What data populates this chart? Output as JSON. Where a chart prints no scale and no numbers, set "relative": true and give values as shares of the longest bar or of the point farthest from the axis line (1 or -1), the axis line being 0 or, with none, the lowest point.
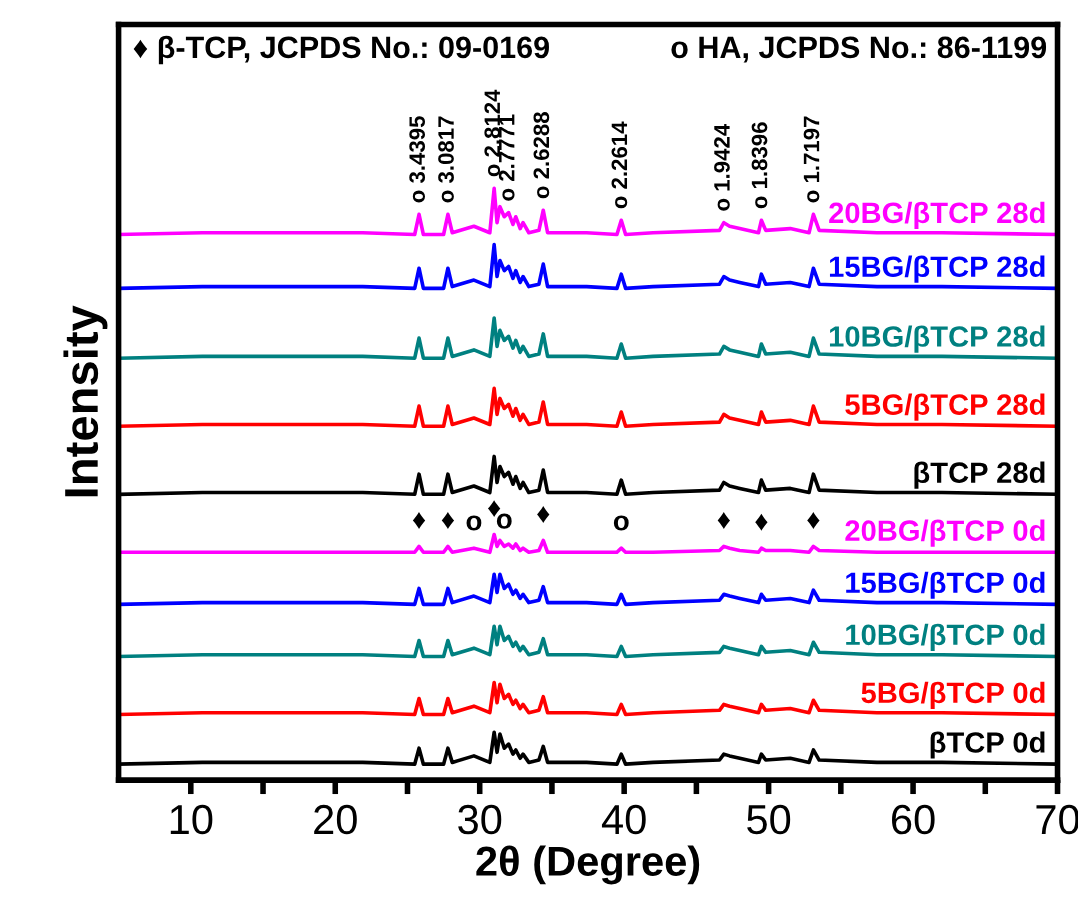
{
  "chart_data": {
    "type": "line",
    "relative": true,
    "xlabel": "2θ (Degree)",
    "ylabel": "Intensity",
    "xlim": [
      5,
      70
    ],
    "xticks": [
      10,
      {
        "value": 15,
        "label": null
      },
      20,
      {
        "value": 25,
        "label": null
      },
      30,
      {
        "value": 35,
        "label": null
      },
      40,
      {
        "value": 45,
        "label": null
      },
      50,
      {
        "value": 55,
        "label": null
      },
      60,
      {
        "value": 65,
        "label": null
      },
      70
    ],
    "x": [
      5,
      10.8,
      13.6,
      17.0,
      21.9,
      25.5,
      25.8,
      26.1,
      27.5,
      27.8,
      28.1,
      29.6,
      30.7,
      31.0,
      31.2,
      31.4,
      31.7,
      32.0,
      32.3,
      32.5,
      32.8,
      33.0,
      33.4,
      34.1,
      34.4,
      34.7,
      37.4,
      39.5,
      39.8,
      40.1,
      42.0,
      46.6,
      46.9,
      47.3,
      48.0,
      49.3,
      49.5,
      49.8,
      51.5,
      52.8,
      53.1,
      53.5,
      57.5,
      62.0,
      70
    ],
    "series": [
      {
        "name": "20BG/βTCP 28d",
        "color": "#ff00ff",
        "values": [
          0.922,
          0.925,
          0.925,
          0.925,
          0.925,
          0.922,
          0.956,
          0.922,
          0.922,
          0.956,
          0.925,
          0.936,
          0.925,
          1.0,
          0.942,
          0.969,
          0.952,
          0.959,
          0.939,
          0.952,
          0.932,
          0.942,
          0.925,
          0.929,
          0.963,
          0.925,
          0.925,
          0.922,
          0.946,
          0.922,
          0.925,
          0.929,
          0.942,
          0.936,
          0.932,
          0.925,
          0.946,
          0.929,
          0.932,
          0.925,
          0.956,
          0.929,
          0.925,
          0.925,
          0.922
        ]
      },
      {
        "name": "15BG/βTCP 28d",
        "color": "#0000ff",
        "values": [
          0.831,
          0.834,
          0.834,
          0.834,
          0.834,
          0.831,
          0.865,
          0.831,
          0.831,
          0.865,
          0.834,
          0.845,
          0.834,
          0.905,
          0.851,
          0.878,
          0.861,
          0.868,
          0.848,
          0.861,
          0.841,
          0.851,
          0.834,
          0.838,
          0.872,
          0.834,
          0.834,
          0.831,
          0.855,
          0.831,
          0.834,
          0.838,
          0.851,
          0.845,
          0.841,
          0.834,
          0.855,
          0.838,
          0.841,
          0.834,
          0.865,
          0.838,
          0.834,
          0.834,
          0.831
        ]
      },
      {
        "name": "10BG/βTCP 28d",
        "color": "#008080",
        "values": [
          0.713,
          0.716,
          0.716,
          0.716,
          0.716,
          0.713,
          0.747,
          0.713,
          0.713,
          0.747,
          0.716,
          0.727,
          0.716,
          0.781,
          0.733,
          0.76,
          0.743,
          0.75,
          0.73,
          0.743,
          0.723,
          0.733,
          0.716,
          0.72,
          0.754,
          0.716,
          0.716,
          0.713,
          0.737,
          0.713,
          0.716,
          0.72,
          0.733,
          0.727,
          0.723,
          0.716,
          0.737,
          0.72,
          0.723,
          0.716,
          0.747,
          0.72,
          0.716,
          0.716,
          0.713
        ]
      },
      {
        "name": "5BG/βTCP 28d",
        "color": "#ff0000",
        "values": [
          0.598,
          0.601,
          0.601,
          0.601,
          0.601,
          0.598,
          0.632,
          0.598,
          0.598,
          0.632,
          0.601,
          0.612,
          0.601,
          0.662,
          0.618,
          0.645,
          0.628,
          0.635,
          0.615,
          0.628,
          0.608,
          0.618,
          0.601,
          0.605,
          0.639,
          0.601,
          0.601,
          0.598,
          0.622,
          0.598,
          0.601,
          0.605,
          0.618,
          0.612,
          0.608,
          0.601,
          0.622,
          0.605,
          0.608,
          0.601,
          0.632,
          0.605,
          0.601,
          0.601,
          0.598
        ]
      },
      {
        "name": "βTCP 28d",
        "color": "#000000",
        "values": [
          0.483,
          0.486,
          0.486,
          0.486,
          0.486,
          0.483,
          0.517,
          0.483,
          0.483,
          0.517,
          0.486,
          0.497,
          0.486,
          0.547,
          0.503,
          0.53,
          0.513,
          0.52,
          0.5,
          0.513,
          0.493,
          0.503,
          0.486,
          0.49,
          0.524,
          0.486,
          0.486,
          0.483,
          0.507,
          0.483,
          0.486,
          0.49,
          0.503,
          0.497,
          0.493,
          0.486,
          0.507,
          0.49,
          0.493,
          0.486,
          0.517,
          0.49,
          0.486,
          0.486,
          0.483
        ]
      },
      {
        "name": "20BG/βTCP 0d",
        "color": "#ff00ff",
        "values": [
          0.385,
          0.385,
          0.385,
          0.385,
          0.385,
          0.385,
          0.395,
          0.385,
          0.385,
          0.395,
          0.385,
          0.392,
          0.385,
          0.415,
          0.395,
          0.405,
          0.395,
          0.399,
          0.392,
          0.399,
          0.388,
          0.392,
          0.385,
          0.388,
          0.405,
          0.385,
          0.385,
          0.385,
          0.392,
          0.385,
          0.385,
          0.388,
          0.395,
          0.392,
          0.388,
          0.385,
          0.392,
          0.388,
          0.388,
          0.385,
          0.395,
          0.388,
          0.385,
          0.385,
          0.385
        ]
      },
      {
        "name": "15BG/βTCP 0d",
        "color": "#0000ff",
        "values": [
          0.297,
          0.3,
          0.3,
          0.3,
          0.3,
          0.297,
          0.324,
          0.297,
          0.297,
          0.324,
          0.3,
          0.311,
          0.3,
          0.348,
          0.317,
          0.348,
          0.324,
          0.331,
          0.314,
          0.321,
          0.307,
          0.314,
          0.3,
          0.304,
          0.327,
          0.3,
          0.3,
          0.297,
          0.314,
          0.297,
          0.3,
          0.304,
          0.314,
          0.311,
          0.307,
          0.3,
          0.314,
          0.304,
          0.307,
          0.3,
          0.321,
          0.304,
          0.3,
          0.3,
          0.297
        ]
      },
      {
        "name": "10BG/βTCP 0d",
        "color": "#008080",
        "values": [
          0.209,
          0.212,
          0.212,
          0.212,
          0.212,
          0.209,
          0.236,
          0.209,
          0.209,
          0.236,
          0.212,
          0.223,
          0.212,
          0.26,
          0.229,
          0.26,
          0.236,
          0.243,
          0.226,
          0.233,
          0.219,
          0.226,
          0.212,
          0.216,
          0.239,
          0.212,
          0.212,
          0.209,
          0.226,
          0.209,
          0.212,
          0.216,
          0.226,
          0.223,
          0.219,
          0.212,
          0.226,
          0.216,
          0.219,
          0.212,
          0.233,
          0.216,
          0.212,
          0.212,
          0.209
        ]
      },
      {
        "name": "5BG/βTCP 0d",
        "color": "#ff0000",
        "values": [
          0.111,
          0.114,
          0.114,
          0.114,
          0.114,
          0.111,
          0.138,
          0.111,
          0.111,
          0.138,
          0.114,
          0.125,
          0.114,
          0.165,
          0.131,
          0.162,
          0.138,
          0.145,
          0.128,
          0.135,
          0.121,
          0.128,
          0.114,
          0.118,
          0.141,
          0.114,
          0.114,
          0.111,
          0.128,
          0.111,
          0.114,
          0.118,
          0.128,
          0.125,
          0.121,
          0.114,
          0.128,
          0.118,
          0.121,
          0.114,
          0.135,
          0.118,
          0.114,
          0.114,
          0.111
        ]
      },
      {
        "name": "βTCP 0d",
        "color": "#000000",
        "values": [
          0.027,
          0.03,
          0.03,
          0.03,
          0.03,
          0.027,
          0.054,
          0.027,
          0.027,
          0.054,
          0.03,
          0.041,
          0.03,
          0.081,
          0.047,
          0.078,
          0.054,
          0.061,
          0.044,
          0.051,
          0.037,
          0.044,
          0.03,
          0.034,
          0.057,
          0.03,
          0.03,
          0.027,
          0.044,
          0.027,
          0.03,
          0.034,
          0.044,
          0.041,
          0.037,
          0.03,
          0.044,
          0.034,
          0.037,
          0.03,
          0.051,
          0.034,
          0.03,
          0.03,
          0.027
        ]
      }
    ],
    "annotations": [
      "♦ β-TCP, JCPDS No.: 09-0169",
      "o HA, JCPDS No.: 86-1199",
      {
        "text": "o 3.4395",
        "x": 25.8,
        "y": 0.956
      },
      {
        "text": "o 3.0817",
        "x": 27.8,
        "y": 0.956
      },
      {
        "text": "o 2.8124",
        "x": 31.0,
        "y": 1.0
      },
      {
        "text": "o 2.7771",
        "x": 32.0,
        "y": 0.959
      },
      {
        "text": "o 2.6288",
        "x": 34.4,
        "y": 0.963
      },
      {
        "text": "o 2.2614",
        "x": 39.8,
        "y": 0.946
      },
      {
        "text": "o 1.9424",
        "x": 46.9,
        "y": 0.942
      },
      {
        "text": "o 1.8396",
        "x": 49.5,
        "y": 0.946
      },
      {
        "text": "o 1.7197",
        "x": 53.1,
        "y": 0.956
      },
      {
        "text": "♦",
        "x": 25.8,
        "y": 0.395
      },
      {
        "text": "♦",
        "x": 27.8,
        "y": 0.395
      },
      {
        "text": "o",
        "x": 29.6,
        "y": 0.392
      },
      {
        "text": "♦",
        "x": 31.0,
        "y": 0.415
      },
      {
        "text": "o",
        "x": 31.7,
        "y": 0.395
      },
      {
        "text": "♦",
        "x": 34.4,
        "y": 0.405
      },
      {
        "text": "o",
        "x": 39.8,
        "y": 0.392
      },
      {
        "text": "♦",
        "x": 46.9,
        "y": 0.395
      },
      {
        "text": "♦",
        "x": 49.5,
        "y": 0.392
      },
      {
        "text": "♦",
        "x": 53.1,
        "y": 0.395
      }
    ]
  }
}
